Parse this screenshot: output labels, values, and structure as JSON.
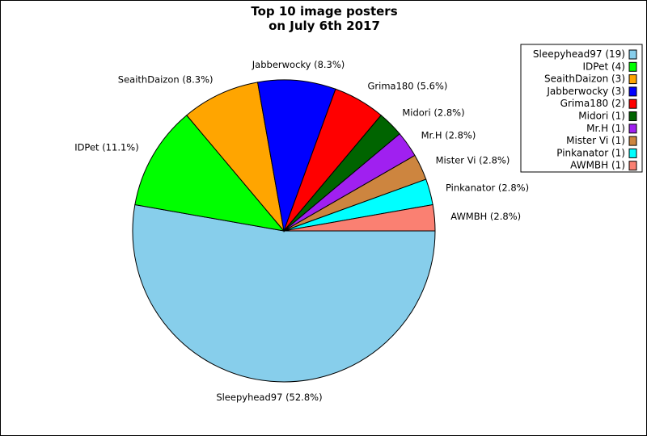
{
  "chart_data": {
    "type": "pie",
    "title": [
      "Top 10 image posters",
      "on July 6th 2017"
    ],
    "slices": [
      {
        "name": "Sleepyhead97",
        "count": 19,
        "percent": 52.8,
        "color": "#87ceeb"
      },
      {
        "name": "IDPet",
        "count": 4,
        "percent": 11.1,
        "color": "#00ff00"
      },
      {
        "name": "SeaithDaizon",
        "count": 3,
        "percent": 8.3,
        "color": "#ffa500"
      },
      {
        "name": "Jabberwocky",
        "count": 3,
        "percent": 8.3,
        "color": "#0000ff"
      },
      {
        "name": "Grima180",
        "count": 2,
        "percent": 5.6,
        "color": "#ff0000"
      },
      {
        "name": "Midori",
        "count": 1,
        "percent": 2.8,
        "color": "#006400"
      },
      {
        "name": "Mr.H",
        "count": 1,
        "percent": 2.8,
        "color": "#a020f0"
      },
      {
        "name": "Mister Vi",
        "count": 1,
        "percent": 2.8,
        "color": "#cd853f"
      },
      {
        "name": "Pinkanator",
        "count": 1,
        "percent": 2.8,
        "color": "#00ffff"
      },
      {
        "name": "AWMBH",
        "count": 1,
        "percent": 2.8,
        "color": "#fa8072"
      }
    ],
    "start_angle_deg": 0,
    "direction": "clockwise",
    "legend": "top-right"
  }
}
